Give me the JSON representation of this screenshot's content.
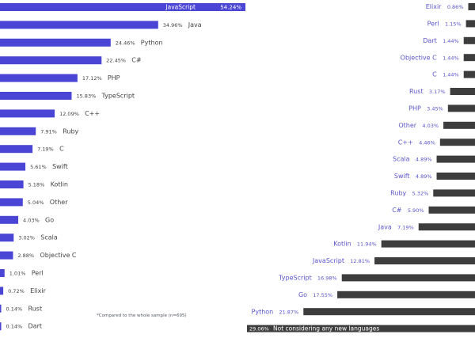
{
  "chart_data": [
    {
      "type": "bar",
      "orientation": "horizontal",
      "categories": [
        "JavaScript",
        "Java",
        "Python",
        "C#",
        "PHP",
        "TypeScript",
        "C++",
        "Ruby",
        "C",
        "Swift",
        "Kotlin",
        "Other",
        "Go",
        "Scala",
        "Objective C",
        "Perl",
        "Elixir",
        "Rust",
        "Dart"
      ],
      "values": [
        54.24,
        34.96,
        24.46,
        22.45,
        17.12,
        15.83,
        12.09,
        7.91,
        7.19,
        5.61,
        5.18,
        5.04,
        4.03,
        3.02,
        2.88,
        1.01,
        0.72,
        0.14,
        0.14
      ],
      "value_labels": [
        "54.24%",
        "34.96%",
        "24.46%",
        "22.45%",
        "17.12%",
        "15.83%",
        "12.09%",
        "7.91%",
        "7.19%",
        "5.61%",
        "5.18%",
        "5.04%",
        "4.03%",
        "3.02%",
        "2.88%",
        "1.01%",
        "0.72%",
        "0.14%",
        "0.14%"
      ],
      "bar_color": "#4b45d6",
      "grid": false,
      "legend": "none"
    },
    {
      "type": "bar",
      "orientation": "horizontal",
      "direction": "right-anchored",
      "categories": [
        "Elixir",
        "Perl",
        "Dart",
        "Objective C",
        "C",
        "Rust",
        "PHP",
        "Other",
        "C++",
        "Scala",
        "Swift",
        "Ruby",
        "C#",
        "Java",
        "Kotlin",
        "JavaScript",
        "TypeScript",
        "Go",
        "Python",
        "Not considering any new languages"
      ],
      "values": [
        0.86,
        1.15,
        1.44,
        1.44,
        1.44,
        3.17,
        3.45,
        4.03,
        4.46,
        4.89,
        4.89,
        5.32,
        5.9,
        7.19,
        11.94,
        12.81,
        16.98,
        17.55,
        21.87,
        29.06
      ],
      "value_labels": [
        "0.86%",
        "1.15%",
        "1.44%",
        "1.44%",
        "1.44%",
        "3.17%",
        "3.45%",
        "4.03%",
        "4.46%",
        "4.89%",
        "4.89%",
        "5.32%",
        "5.90%",
        "7.19%",
        "11.94%",
        "12.81%",
        "16.98%",
        "17.55%",
        "21.87%",
        "29.06%"
      ],
      "bar_color": "#3d3d3d",
      "label_color": "#5a55c9",
      "grid": false,
      "legend": "none"
    }
  ],
  "footnote": "*Compared to the whole sample (n=695)",
  "colors": {
    "left_bar": "#4b45d6",
    "right_bar": "#3d3d3d",
    "left_label": "#444444",
    "right_label": "#5a55c9"
  }
}
